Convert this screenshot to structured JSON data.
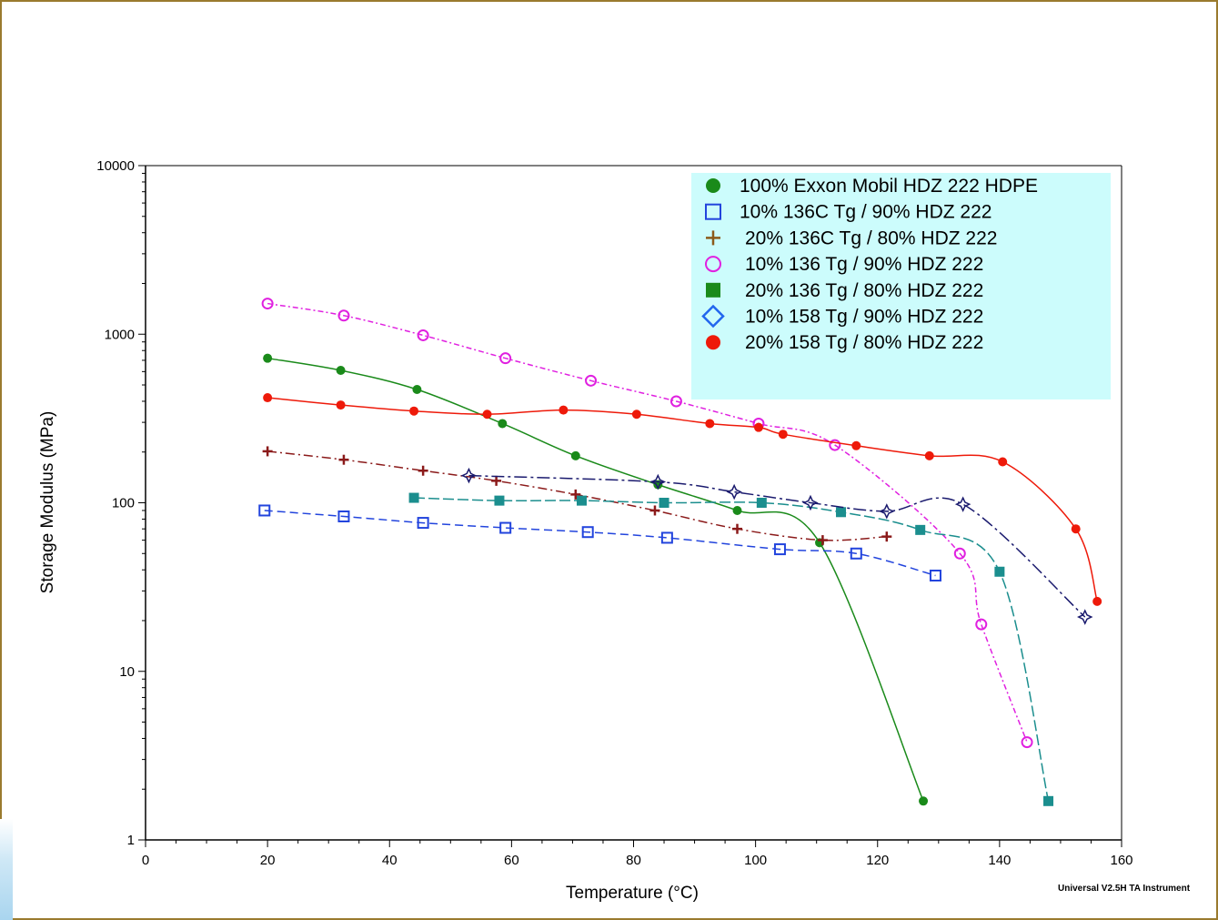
{
  "chart_data": {
    "type": "line",
    "xlabel": "Temperature (°C)",
    "ylabel": "Storage Modulus (MPa)",
    "xlim": [
      0,
      160
    ],
    "ylim": [
      1,
      10000
    ],
    "yscale": "log",
    "x_ticks": [
      0,
      20,
      40,
      60,
      80,
      100,
      120,
      140,
      160
    ],
    "y_ticks": [
      1,
      10,
      100,
      1000,
      10000
    ],
    "x_tick_labels": [
      "0",
      "20",
      "40",
      "60",
      "80",
      "100",
      "120",
      "140",
      "160"
    ],
    "y_tick_labels": [
      "1",
      "10",
      "100",
      "1000",
      "10000"
    ],
    "grid": false,
    "legend_position": "top-right",
    "footer": "Universal V2.5H TA Instrument",
    "series": [
      {
        "name": "100% Exxon Mobil HDZ 222 HDPE",
        "marker": "filled-circle",
        "color": "#1a8a1a",
        "dash": "",
        "x": [
          20,
          32,
          44.5,
          58.5,
          70.5,
          84,
          97,
          110.5,
          127.5
        ],
        "y": [
          720,
          610,
          470,
          295,
          190,
          128,
          90,
          58,
          1.7
        ]
      },
      {
        "name": "10% 136C Tg / 90% HDZ 222",
        "marker": "open-square",
        "color": "#2244dd",
        "dash": "9,5",
        "x": [
          19.5,
          32.5,
          45.5,
          59,
          72.5,
          85.5,
          104,
          116.5,
          129.5
        ],
        "y": [
          90,
          83,
          76,
          71,
          67,
          62,
          53,
          50,
          37
        ]
      },
      {
        "name": "20% 136C Tg / 80% HDZ 222",
        "marker": "plus",
        "color": "#8b1a1a",
        "dash": "10,4,2,4",
        "x": [
          20,
          32.5,
          45.5,
          57.5,
          70.5,
          83.5,
          97,
          111,
          121.5
        ],
        "y": [
          202,
          180,
          155,
          135,
          112,
          90,
          70,
          60,
          63
        ]
      },
      {
        "name": "10% 136 Tg / 90% HDZ 222",
        "marker": "open-circle",
        "color": "#e020e0",
        "dash": "6,3,2,3",
        "x": [
          20,
          32.5,
          45.5,
          59,
          73,
          87,
          100.5,
          113,
          133.5,
          137,
          144.5
        ],
        "y": [
          1520,
          1290,
          985,
          720,
          530,
          400,
          295,
          220,
          50,
          19,
          3.8
        ]
      },
      {
        "name": "20% 136 Tg / 80% HDZ 222",
        "marker": "filled-square",
        "color": "#1b8e8e",
        "dash": "12,4",
        "x": [
          44,
          58,
          71.5,
          85,
          101,
          114,
          127,
          140,
          148
        ],
        "y": [
          107,
          103,
          103,
          100,
          100,
          88,
          69,
          39,
          1.7
        ]
      },
      {
        "name": "10% 158 Tg / 90% HDZ 222",
        "marker": "open-star",
        "color": "#1a1a6e",
        "dash": "14,4,3,4",
        "x": [
          53,
          84,
          96.5,
          109,
          121.5,
          134,
          154
        ],
        "y": [
          145,
          133,
          116,
          100,
          89,
          98,
          21
        ]
      },
      {
        "name": "20% 158 Tg / 80% HDZ 222",
        "marker": "filled-circle",
        "color": "#ee1a0a",
        "dash": "",
        "x": [
          20,
          32,
          44,
          56,
          68.5,
          80.5,
          92.5,
          100.5,
          104.5,
          116.5,
          128.5,
          140.5,
          152.5,
          156
        ],
        "y": [
          420,
          380,
          350,
          335,
          355,
          335,
          295,
          280,
          255,
          218,
          190,
          175,
          70,
          26
        ]
      }
    ]
  }
}
